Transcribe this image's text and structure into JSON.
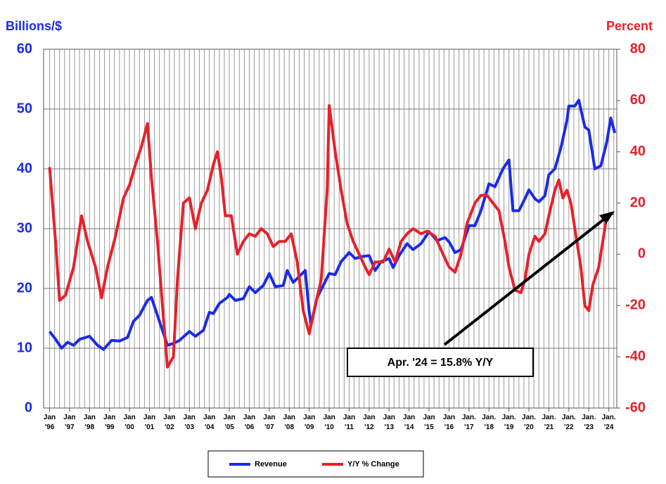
{
  "chart_data": {
    "type": "line",
    "y_axis_label": "Billions/$",
    "y2_axis_label": "Percent",
    "annotation": "Apr. '24 = 15.8% Y/Y",
    "xlim": [
      1995.7,
      2024.4
    ],
    "xticks": [
      {
        "value": 1996,
        "label": "Jan '96"
      },
      {
        "value": 1997,
        "label": "Jan '97"
      },
      {
        "value": 1998,
        "label": "Jan '98"
      },
      {
        "value": 1999,
        "label": "Jan '99"
      },
      {
        "value": 2000,
        "label": "Jan '00"
      },
      {
        "value": 2001,
        "label": "Jan '01"
      },
      {
        "value": 2002,
        "label": "Jan '02"
      },
      {
        "value": 2003,
        "label": "Jan '03"
      },
      {
        "value": 2004,
        "label": "Jan '04"
      },
      {
        "value": 2005,
        "label": "Jan '05"
      },
      {
        "value": 2006,
        "label": "Jan '06"
      },
      {
        "value": 2007,
        "label": "Jan '07"
      },
      {
        "value": 2008,
        "label": "Jan '08"
      },
      {
        "value": 2009,
        "label": "Jan '09"
      },
      {
        "value": 2010,
        "label": "Jan '10"
      },
      {
        "value": 2011,
        "label": "Jan '11"
      },
      {
        "value": 2012,
        "label": "Jan '12"
      },
      {
        "value": 2013,
        "label": "Jan '13"
      },
      {
        "value": 2014,
        "label": "Jan '14"
      },
      {
        "value": 2015,
        "label": "Jan '15"
      },
      {
        "value": 2016,
        "label": "Jan '16"
      },
      {
        "value": 2017,
        "label": "Jan. '17"
      },
      {
        "value": 2018,
        "label": "Jan. '18"
      },
      {
        "value": 2019,
        "label": "Jan. '19"
      },
      {
        "value": 2020,
        "label": "Jan. '20"
      },
      {
        "value": 2021,
        "label": "Jan. '21"
      },
      {
        "value": 2022,
        "label": "Jan. '22"
      },
      {
        "value": 2023,
        "label": "Jan. '23"
      },
      {
        "value": 2024,
        "label": "Jan. '24"
      }
    ],
    "ylim": [
      0,
      60
    ],
    "yticks": [
      0,
      10,
      20,
      30,
      40,
      50,
      60
    ],
    "y2lim": [
      -60,
      80
    ],
    "y2ticks": [
      -60,
      -40,
      -20,
      0,
      20,
      40,
      60,
      80
    ],
    "grid": true,
    "legend": "bottom",
    "series": [
      {
        "name": "Revenue",
        "color": "#1a2be6",
        "x": [
          1996.0,
          1996.3,
          1996.6,
          1996.9,
          1997.2,
          1997.5,
          1998.0,
          1998.4,
          1998.7,
          1999.1,
          1999.5,
          1999.9,
          2000.2,
          2000.5,
          2000.9,
          2001.1,
          2001.4,
          2001.7,
          2001.9,
          2002.2,
          2002.5,
          2003.0,
          2003.3,
          2003.7,
          2004.0,
          2004.2,
          2004.5,
          2004.9,
          2005.0,
          2005.3,
          2005.7,
          2006.0,
          2006.3,
          2006.7,
          2007.0,
          2007.3,
          2007.7,
          2007.9,
          2008.2,
          2008.5,
          2008.8,
          2009.0,
          2009.1,
          2009.4,
          2009.7,
          2010.0,
          2010.3,
          2010.6,
          2011.0,
          2011.3,
          2011.6,
          2012.0,
          2012.3,
          2012.6,
          2013.0,
          2013.2,
          2013.5,
          2013.9,
          2014.2,
          2014.6,
          2015.0,
          2015.4,
          2015.8,
          2016.0,
          2016.3,
          2016.6,
          2017.0,
          2017.3,
          2017.6,
          2018.0,
          2018.3,
          2018.7,
          2019.0,
          2019.2,
          2019.5,
          2019.8,
          2020.0,
          2020.3,
          2020.5,
          2020.8,
          2021.0,
          2021.3,
          2021.6,
          2021.9,
          2022.0,
          2022.3,
          2022.5,
          2022.8,
          2023.0,
          2023.3,
          2023.6,
          2023.9,
          2024.1,
          2024.3
        ],
        "values": [
          12.8,
          11.5,
          10.0,
          11.0,
          10.5,
          11.5,
          12.0,
          10.5,
          9.8,
          11.3,
          11.2,
          11.8,
          14.5,
          15.5,
          18.0,
          18.5,
          15.5,
          12.5,
          10.5,
          10.8,
          11.3,
          12.8,
          12.0,
          13.0,
          16.0,
          15.8,
          17.5,
          18.5,
          19.0,
          18.0,
          18.3,
          20.3,
          19.3,
          20.5,
          22.5,
          20.3,
          20.5,
          23.0,
          21.0,
          22.0,
          23.0,
          16.0,
          14.0,
          18.5,
          20.5,
          22.5,
          22.3,
          24.5,
          26.0,
          25.0,
          25.3,
          25.5,
          23.0,
          24.5,
          25.0,
          23.5,
          25.5,
          27.5,
          26.5,
          27.5,
          29.5,
          28.0,
          28.5,
          27.8,
          26.0,
          26.5,
          30.5,
          30.5,
          33.0,
          37.5,
          37.0,
          40.0,
          41.5,
          33.0,
          33.0,
          35.0,
          36.5,
          35.0,
          34.5,
          35.5,
          39.0,
          40.0,
          43.5,
          48.0,
          50.5,
          50.5,
          51.5,
          47.0,
          46.5,
          40.0,
          40.5,
          44.5,
          48.5,
          46.0
        ]
      },
      {
        "name": "Y/Y % Change",
        "color": "#e8202a",
        "axis": "y2",
        "x": [
          1996.0,
          1996.3,
          1996.5,
          1996.8,
          1997.2,
          1997.6,
          1997.9,
          1998.3,
          1998.6,
          1998.9,
          1999.3,
          1999.7,
          2000.0,
          2000.3,
          2000.6,
          2000.9,
          2001.1,
          2001.4,
          2001.7,
          2001.9,
          2002.2,
          2002.4,
          2002.7,
          2003.0,
          2003.3,
          2003.6,
          2003.9,
          2004.2,
          2004.4,
          2004.6,
          2004.8,
          2005.1,
          2005.4,
          2005.7,
          2006.0,
          2006.3,
          2006.6,
          2006.9,
          2007.2,
          2007.5,
          2007.8,
          2008.1,
          2008.4,
          2008.7,
          2009.0,
          2009.3,
          2009.6,
          2009.9,
          2010.0,
          2010.3,
          2010.6,
          2010.9,
          2011.2,
          2011.5,
          2011.8,
          2012.0,
          2012.3,
          2012.7,
          2013.0,
          2013.3,
          2013.6,
          2013.9,
          2014.2,
          2014.6,
          2014.9,
          2015.3,
          2015.7,
          2016.0,
          2016.3,
          2016.6,
          2016.9,
          2017.3,
          2017.6,
          2017.9,
          2018.2,
          2018.5,
          2018.8,
          2019.0,
          2019.3,
          2019.6,
          2019.8,
          2020.0,
          2020.3,
          2020.5,
          2020.8,
          2021.0,
          2021.3,
          2021.5,
          2021.7,
          2021.9,
          2022.1,
          2022.4,
          2022.6,
          2022.8,
          2023.0,
          2023.2,
          2023.5,
          2023.7,
          2023.9,
          2024.1,
          2024.25
        ],
        "values": [
          34,
          5,
          -18,
          -16,
          -5,
          15,
          5,
          -5,
          -17,
          -5,
          7,
          22,
          27,
          35,
          42,
          51,
          30,
          5,
          -25,
          -44,
          -40,
          -10,
          20,
          22,
          10,
          20,
          25,
          35,
          40,
          30,
          15,
          15,
          0,
          5,
          8,
          7,
          10,
          8,
          3,
          5,
          5,
          8,
          -3,
          -22,
          -31,
          -20,
          -10,
          25,
          58,
          40,
          25,
          12,
          5,
          0,
          -5,
          -8,
          -3,
          -3,
          2,
          -3,
          5,
          8,
          10,
          8,
          9,
          7,
          0,
          -5,
          -7,
          0,
          12,
          20,
          23,
          23,
          20,
          17,
          5,
          -5,
          -14,
          -15,
          -10,
          0,
          7,
          5,
          8,
          15,
          25,
          29,
          22,
          25,
          20,
          5,
          -5,
          -20,
          -22,
          -12,
          -5,
          5,
          15,
          16,
          15.8
        ]
      }
    ]
  }
}
